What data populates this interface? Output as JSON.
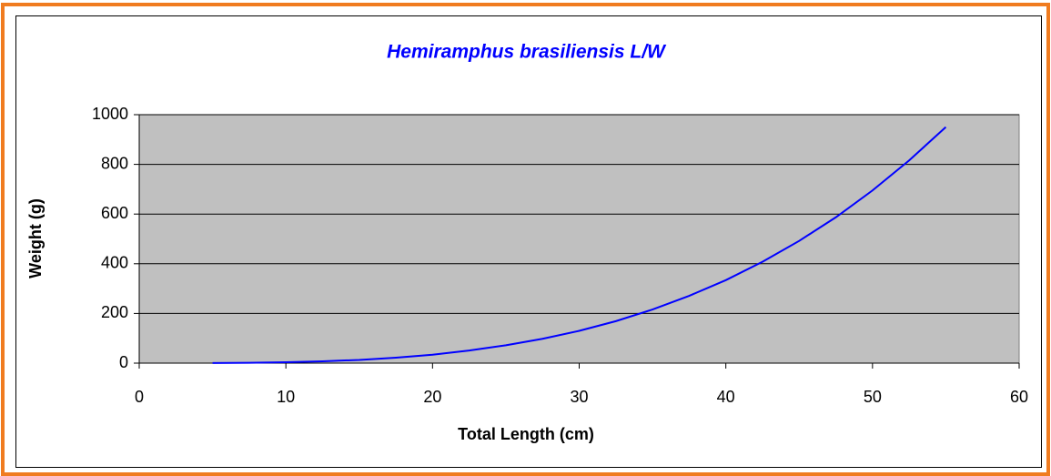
{
  "chart_data": {
    "type": "line",
    "title": "Hemiramphus brasiliensis L/W",
    "x_label": "Total Length (cm)",
    "y_label": "Weight (g)",
    "x": [
      5,
      7.5,
      10,
      12.5,
      15,
      17.5,
      20,
      22.5,
      25,
      27.5,
      30,
      32.5,
      35,
      37.5,
      40,
      42.5,
      45,
      47.5,
      50,
      52.5,
      55
    ],
    "series": [
      {
        "name": "Weight",
        "color": "#0000ff",
        "values": [
          0.4,
          1.4,
          3.5,
          7.4,
          13,
          22,
          34,
          51,
          72,
          98,
          130,
          169,
          216,
          271,
          334,
          408,
          492,
          587,
          695,
          816,
          950
        ]
      }
    ],
    "xlim": [
      0,
      60
    ],
    "xticks": [
      0,
      10,
      20,
      30,
      40,
      50,
      60
    ],
    "ylim": [
      0,
      1000
    ],
    "yticks": [
      0,
      200,
      400,
      600,
      800,
      1000
    ],
    "grid": true,
    "plot_background": "#c0c0c0"
  }
}
